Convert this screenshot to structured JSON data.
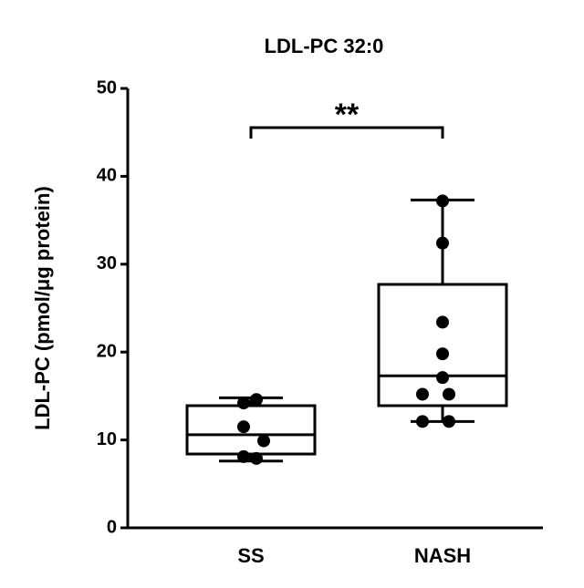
{
  "chart_data": {
    "type": "box",
    "title": "LDL-PC 32:0",
    "y_label": "LDL-PC  (pmol/μg protein)",
    "categories": [
      "SS",
      "NASH"
    ],
    "boxes": [
      {
        "whisker_low": 7.6,
        "q1": 8.4,
        "median": 10.6,
        "q3": 13.9,
        "whisker_high": 14.8,
        "points": [
          14.6,
          14.2,
          11.5,
          9.9,
          8.1,
          7.9
        ]
      },
      {
        "whisker_low": 12.1,
        "q1": 13.9,
        "median": 17.3,
        "q3": 27.7,
        "whisker_high": 37.3,
        "points": [
          37.2,
          32.4,
          23.4,
          19.8,
          17.1,
          15.2,
          15.2,
          12.1,
          12.1
        ]
      }
    ],
    "annotation": "**",
    "color": "#000000",
    "ylim": [
      0,
      50
    ],
    "yticks": [
      0,
      10,
      20,
      30,
      40,
      50
    ]
  }
}
